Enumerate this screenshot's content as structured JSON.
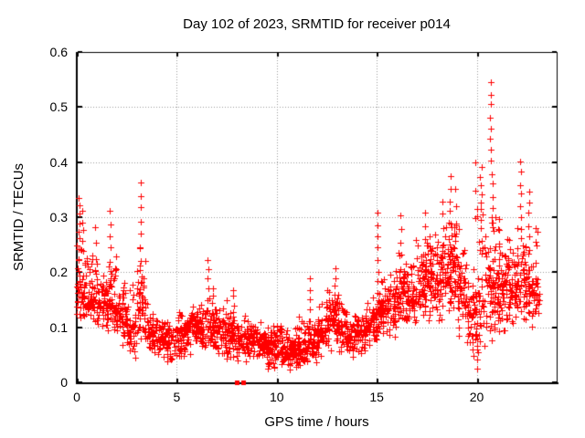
{
  "window": {
    "background": "#ffffff"
  },
  "chart_data": {
    "type": "scatter",
    "title": "Day 102 of 2023, SRMTID for receiver p014",
    "xlabel": "GPS time / hours",
    "ylabel": "SRMTID / TECUs",
    "xlim": [
      0,
      24
    ],
    "ylim": [
      0,
      0.6
    ],
    "xticks": [
      0,
      5,
      10,
      15,
      20
    ],
    "xtick_labels": [
      "0",
      "5",
      "10",
      "15",
      "20"
    ],
    "yticks": [
      0,
      0.1,
      0.2,
      0.3,
      0.4,
      0.5,
      0.6
    ],
    "ytick_labels": [
      "0",
      "0.1",
      "0.2",
      "0.3",
      "0.4",
      "0.5",
      "0.6"
    ],
    "grid": true,
    "legend_position": "none",
    "marker": {
      "shape": "plus",
      "size": 7,
      "color": "#ff0000"
    },
    "frame_color": "#000000",
    "grid_color": "#9a9a9a",
    "seed": 1337,
    "density_bins": {
      "bin_width": 0.5,
      "columns_format": [
        "x_start_hours",
        "y_min",
        "y_typical",
        "y_max",
        "point_count",
        "optional_width"
      ],
      "columns": [
        [
          0.0,
          0.1,
          0.165,
          0.3,
          55
        ],
        [
          0.5,
          0.1,
          0.155,
          0.27,
          50
        ],
        [
          1.0,
          0.09,
          0.14,
          0.22,
          50
        ],
        [
          1.5,
          0.09,
          0.15,
          0.28,
          52
        ],
        [
          2.0,
          0.06,
          0.13,
          0.21,
          48
        ],
        [
          2.5,
          0.04,
          0.1,
          0.18,
          45
        ],
        [
          3.0,
          0.07,
          0.13,
          0.27,
          52
        ],
        [
          3.5,
          0.05,
          0.09,
          0.16,
          45
        ],
        [
          4.0,
          0.04,
          0.08,
          0.14,
          46
        ],
        [
          4.5,
          0.03,
          0.075,
          0.13,
          46
        ],
        [
          5.0,
          0.04,
          0.09,
          0.15,
          50
        ],
        [
          5.5,
          0.04,
          0.1,
          0.16,
          50
        ],
        [
          6.0,
          0.05,
          0.1,
          0.17,
          52
        ],
        [
          6.5,
          0.05,
          0.1,
          0.18,
          52
        ],
        [
          7.0,
          0.04,
          0.09,
          0.15,
          48
        ],
        [
          7.5,
          0.03,
          0.085,
          0.15,
          48
        ],
        [
          8.0,
          0.03,
          0.08,
          0.13,
          48
        ],
        [
          8.5,
          0.04,
          0.08,
          0.13,
          48
        ],
        [
          9.0,
          0.03,
          0.07,
          0.12,
          52
        ],
        [
          9.5,
          0.02,
          0.06,
          0.12,
          56
        ],
        [
          10.0,
          0.02,
          0.06,
          0.13,
          56
        ],
        [
          10.5,
          0.02,
          0.055,
          0.11,
          56
        ],
        [
          11.0,
          0.02,
          0.06,
          0.12,
          56
        ],
        [
          11.5,
          0.03,
          0.07,
          0.15,
          52
        ],
        [
          12.0,
          0.04,
          0.09,
          0.16,
          52
        ],
        [
          12.5,
          0.05,
          0.11,
          0.19,
          52
        ],
        [
          13.0,
          0.05,
          0.1,
          0.17,
          50
        ],
        [
          13.5,
          0.04,
          0.08,
          0.13,
          48
        ],
        [
          14.0,
          0.05,
          0.09,
          0.14,
          48
        ],
        [
          14.5,
          0.06,
          0.1,
          0.17,
          50
        ],
        [
          15.0,
          0.08,
          0.13,
          0.24,
          52
        ],
        [
          15.5,
          0.08,
          0.14,
          0.24,
          52
        ],
        [
          16.0,
          0.1,
          0.16,
          0.27,
          54
        ],
        [
          16.5,
          0.09,
          0.155,
          0.26,
          54
        ],
        [
          17.0,
          0.1,
          0.17,
          0.29,
          54
        ],
        [
          17.5,
          0.1,
          0.185,
          0.32,
          54
        ],
        [
          18.0,
          0.1,
          0.19,
          0.31,
          54
        ],
        [
          18.5,
          0.12,
          0.215,
          0.35,
          58
        ],
        [
          19.0,
          0.08,
          0.17,
          0.28,
          54
        ],
        [
          19.5,
          0.03,
          0.12,
          0.24,
          52
        ],
        [
          20.0,
          0.03,
          0.13,
          0.33,
          44
        ],
        [
          20.5,
          0.05,
          0.17,
          0.33,
          56
        ],
        [
          21.0,
          0.08,
          0.165,
          0.28,
          54
        ],
        [
          21.5,
          0.1,
          0.17,
          0.27,
          54
        ],
        [
          22.0,
          0.1,
          0.175,
          0.3,
          54
        ],
        [
          22.5,
          0.1,
          0.16,
          0.28,
          50
        ],
        [
          23.0,
          0.12,
          0.17,
          0.28,
          10,
          0.15
        ]
      ]
    },
    "spike_columns_format": [
      "x_hours",
      "y_low",
      "y_high",
      "point_count"
    ],
    "spike_columns": [
      [
        0.12,
        0.26,
        0.335,
        6
      ],
      [
        0.3,
        0.24,
        0.31,
        5
      ],
      [
        0.95,
        0.2,
        0.28,
        4
      ],
      [
        1.65,
        0.2,
        0.31,
        6
      ],
      [
        3.2,
        0.17,
        0.365,
        9
      ],
      [
        6.55,
        0.13,
        0.225,
        6
      ],
      [
        7.85,
        0.11,
        0.17,
        5
      ],
      [
        11.65,
        0.11,
        0.19,
        5
      ],
      [
        12.9,
        0.13,
        0.205,
        6
      ],
      [
        15.05,
        0.14,
        0.31,
        9
      ],
      [
        16.2,
        0.16,
        0.3,
        7
      ],
      [
        17.45,
        0.18,
        0.31,
        6
      ],
      [
        18.3,
        0.2,
        0.33,
        6
      ],
      [
        18.7,
        0.22,
        0.375,
        8
      ],
      [
        18.95,
        0.2,
        0.35,
        6
      ],
      [
        19.95,
        0.3,
        0.4,
        3
      ],
      [
        20.05,
        0.025,
        0.08,
        5
      ],
      [
        20.2,
        0.28,
        0.39,
        8
      ],
      [
        20.7,
        0.4,
        0.545,
        8
      ],
      [
        20.78,
        0.28,
        0.38,
        6
      ],
      [
        21.1,
        0.2,
        0.3,
        5
      ],
      [
        22.2,
        0.26,
        0.4,
        8
      ],
      [
        22.6,
        0.24,
        0.35,
        6
      ],
      [
        22.95,
        0.16,
        0.28,
        5
      ]
    ],
    "zero_points": {
      "marker": "filled-square",
      "x": [
        7.98,
        8.34
      ],
      "y": [
        0,
        0
      ]
    }
  }
}
